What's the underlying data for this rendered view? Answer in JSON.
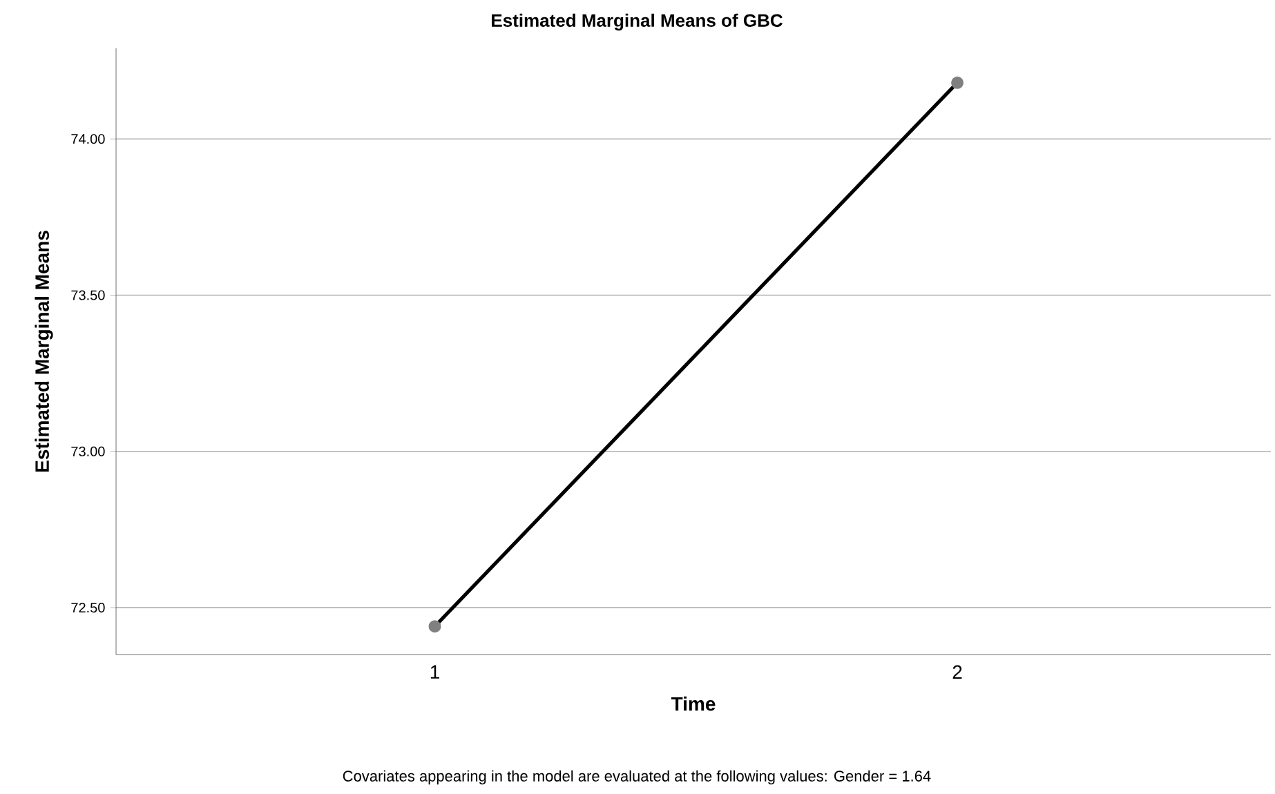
{
  "chart_data": {
    "type": "line",
    "title": "Estimated Marginal Means of GBC",
    "xlabel": "Time",
    "ylabel": "Estimated Marginal Means",
    "categories": [
      "1",
      "2"
    ],
    "series": [
      {
        "color": "#000000",
        "values": [
          72.44,
          74.18
        ]
      }
    ],
    "ylim": [
      72.35,
      74.29
    ],
    "yticks": [
      {
        "value": 72.5,
        "label": "72.50"
      },
      {
        "value": 73.0,
        "label": "73.00"
      },
      {
        "value": 73.5,
        "label": "73.50"
      },
      {
        "value": 74.0,
        "label": "74.00"
      }
    ],
    "grid": "y",
    "marker": "circle",
    "line_style": "solid",
    "annotations": [
      "Covariates appearing in the model are evaluated at the following values: Gender = 1.64"
    ]
  }
}
